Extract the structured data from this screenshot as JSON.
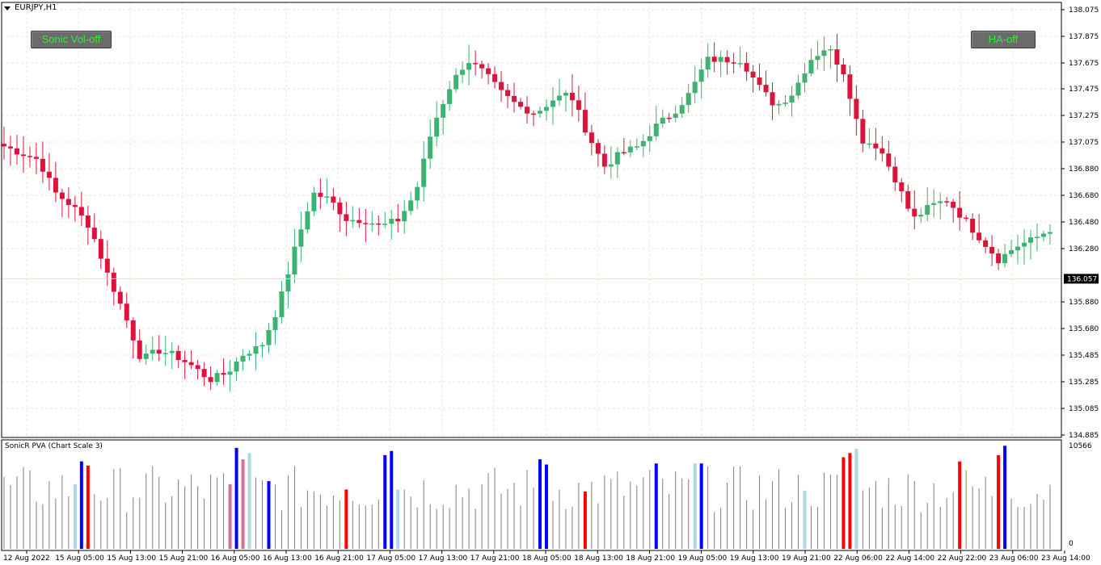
{
  "window": {
    "symbol_title": "EURJPY,H1"
  },
  "buttons": {
    "sonic_label": "Sonic Vol-off",
    "ha_label": "HA-off"
  },
  "indicator": {
    "title": "SonicR PVA  (Chart Scale 3)",
    "max_label": "10566",
    "min_label": "0"
  },
  "colors": {
    "bull": "#3cb371",
    "bear": "#dc143c",
    "grid": "#f2e4d4",
    "vol_neutral": "#808080",
    "vol_red": "#ff0000",
    "vol_blue": "#0000ff",
    "vol_lightblue": "#add8e6",
    "vol_pink": "#d87093",
    "button_text": "#39e839"
  },
  "chart_data": {
    "type": "candlestick",
    "price_axis": {
      "ticks": [
        "138.075",
        "137.875",
        "137.675",
        "137.475",
        "137.275",
        "137.075",
        "136.880",
        "136.680",
        "136.480",
        "136.280",
        "135.880",
        "135.680",
        "135.485",
        "135.285",
        "135.085",
        "134.885"
      ],
      "current_price": "136.057",
      "ylim": [
        134.885,
        138.075
      ]
    },
    "time_labels": [
      "12 Aug 2022",
      "15 Aug 05:00",
      "15 Aug 13:00",
      "15 Aug 21:00",
      "16 Aug 05:00",
      "16 Aug 13:00",
      "16 Aug 21:00",
      "17 Aug 05:00",
      "17 Aug 13:00",
      "17 Aug 21:00",
      "18 Aug 05:00",
      "18 Aug 13:00",
      "18 Aug 21:00",
      "19 Aug 05:00",
      "19 Aug 13:00",
      "19 Aug 21:00",
      "22 Aug 06:00",
      "22 Aug 14:00",
      "22 Aug 22:00",
      "23 Aug 06:00",
      "23 Aug 14:00"
    ],
    "price_path": [
      137.05,
      137.0,
      136.95,
      136.7,
      136.6,
      136.45,
      136.1,
      135.8,
      135.45,
      135.52,
      135.48,
      135.4,
      135.3,
      135.35,
      135.5,
      135.55,
      135.85,
      136.3,
      136.7,
      136.65,
      136.5,
      136.5,
      136.45,
      136.5,
      136.7,
      137.2,
      137.5,
      137.7,
      137.6,
      137.45,
      137.35,
      137.3,
      137.4,
      137.45,
      137.15,
      136.9,
      137.0,
      137.05,
      137.2,
      137.3,
      137.45,
      137.7,
      137.7,
      137.7,
      137.5,
      137.35,
      137.45,
      137.7,
      137.8,
      137.6,
      137.1,
      137.05,
      136.8,
      136.5,
      136.6,
      136.65,
      136.5,
      136.35,
      136.2,
      136.3,
      136.35,
      136.43
    ],
    "volume_highlights": [
      {
        "index": 11,
        "color": "lightblue",
        "level": 0.62
      },
      {
        "index": 12,
        "color": "blue",
        "level": 0.84
      },
      {
        "index": 13,
        "color": "red",
        "level": 0.8
      },
      {
        "index": 35,
        "color": "pink",
        "level": 0.62
      },
      {
        "index": 36,
        "color": "blue",
        "level": 0.97
      },
      {
        "index": 37,
        "color": "pink",
        "level": 0.86
      },
      {
        "index": 38,
        "color": "lightblue",
        "level": 0.92
      },
      {
        "index": 41,
        "color": "blue",
        "level": 0.65
      },
      {
        "index": 53,
        "color": "red",
        "level": 0.57
      },
      {
        "index": 59,
        "color": "blue",
        "level": 0.9
      },
      {
        "index": 60,
        "color": "blue",
        "level": 0.94
      },
      {
        "index": 61,
        "color": "lightblue",
        "level": 0.57
      },
      {
        "index": 83,
        "color": "blue",
        "level": 0.86
      },
      {
        "index": 84,
        "color": "blue",
        "level": 0.81
      },
      {
        "index": 90,
        "color": "red",
        "level": 0.55
      },
      {
        "index": 101,
        "color": "blue",
        "level": 0.82
      },
      {
        "index": 107,
        "color": "lightblue",
        "level": 0.82
      },
      {
        "index": 108,
        "color": "blue",
        "level": 0.82
      },
      {
        "index": 124,
        "color": "lightblue",
        "level": 0.56
      },
      {
        "index": 130,
        "color": "red",
        "level": 0.88
      },
      {
        "index": 131,
        "color": "red",
        "level": 0.92
      },
      {
        "index": 132,
        "color": "lightblue",
        "level": 0.96
      },
      {
        "index": 148,
        "color": "red",
        "level": 0.84
      },
      {
        "index": 154,
        "color": "red",
        "level": 0.9
      },
      {
        "index": 155,
        "color": "blue",
        "level": 0.99
      }
    ],
    "volume_range": [
      0,
      10566
    ]
  }
}
